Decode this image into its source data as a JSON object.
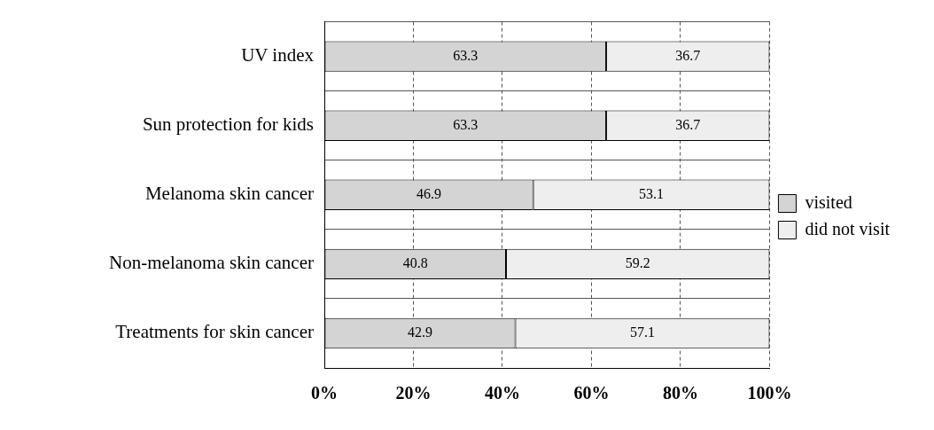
{
  "chart_data": {
    "type": "bar",
    "orientation": "horizontal",
    "stacked": true,
    "categories": [
      "UV index",
      "Sun protection for kids",
      "Melanoma skin cancer",
      "Non-melanoma skin cancer",
      "Treatments for skin cancer"
    ],
    "series": [
      {
        "name": "visited",
        "color": "#d4d4d4",
        "values": [
          63.3,
          63.3,
          46.9,
          40.8,
          42.9
        ]
      },
      {
        "name": "did not visit",
        "color": "#eeeeee",
        "values": [
          36.7,
          36.7,
          53.1,
          59.2,
          57.1
        ]
      }
    ],
    "xlim": [
      0,
      100
    ],
    "xticks": [
      {
        "value": 0,
        "label": "0%"
      },
      {
        "value": 20,
        "label": "20%"
      },
      {
        "value": 40,
        "label": "40%"
      },
      {
        "value": 60,
        "label": "60%"
      },
      {
        "value": 80,
        "label": "80%"
      },
      {
        "value": 100,
        "label": "100%"
      }
    ],
    "grid": true,
    "legend": "right",
    "data_labels": true
  }
}
